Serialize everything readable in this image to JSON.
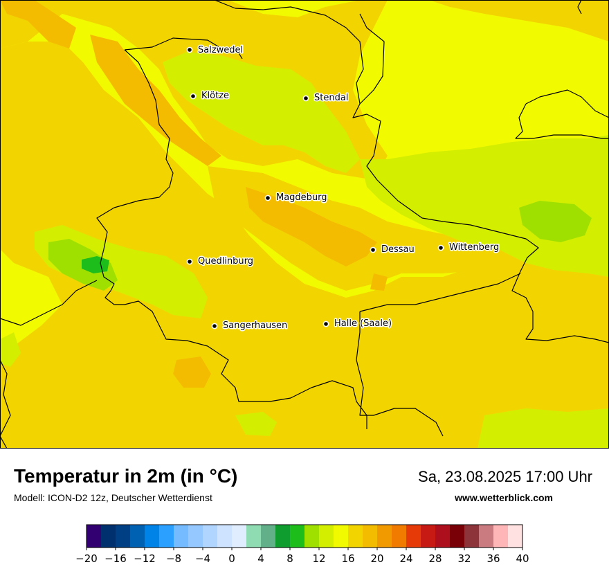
{
  "header": {
    "title": "Temperatur in 2m (in °C)",
    "model": "Modell: ICON-D2 12z, Deutscher Wetterdienst",
    "datetime": "Sa, 23.08.2025 17:00 Uhr",
    "website": "www.wetterblick.com"
  },
  "cities": [
    {
      "name": "Salzwedel",
      "id": "salzwedel"
    },
    {
      "name": "Klötze",
      "id": "kloetze"
    },
    {
      "name": "Stendal",
      "id": "stendal"
    },
    {
      "name": "Magdeburg",
      "id": "magdeburg"
    },
    {
      "name": "Dessau",
      "id": "dessau"
    },
    {
      "name": "Wittenberg",
      "id": "wittenberg"
    },
    {
      "name": "Quedlinburg",
      "id": "quedlinburg"
    },
    {
      "name": "Sangerhausen",
      "id": "sangerhausen"
    },
    {
      "name": "Halle (Saale)",
      "id": "halle"
    }
  ],
  "legend": {
    "min": -20,
    "max": 40,
    "step": 2,
    "tick_labels": [
      "−20",
      "−16",
      "−12",
      "−8",
      "−4",
      "0",
      "4",
      "8",
      "12",
      "16",
      "20",
      "24",
      "28",
      "32",
      "36",
      "40"
    ],
    "colors": [
      "#330072",
      "#00306e",
      "#003f84",
      "#0061b3",
      "#0083e6",
      "#2ca0ff",
      "#74bcff",
      "#94c8ff",
      "#b0d6ff",
      "#cde3ff",
      "#e0edff",
      "#8fdcb2",
      "#62b08a",
      "#109d2f",
      "#1dbd1b",
      "#a0e000",
      "#d4ee00",
      "#f2fa00",
      "#f2d500",
      "#f4bc00",
      "#f09a00",
      "#f07b00",
      "#e63a09",
      "#c71a15",
      "#ae0f1c",
      "#7a0008",
      "#8c343a",
      "#c97b80",
      "#ffb6b6",
      "#ffe1e1"
    ]
  }
}
